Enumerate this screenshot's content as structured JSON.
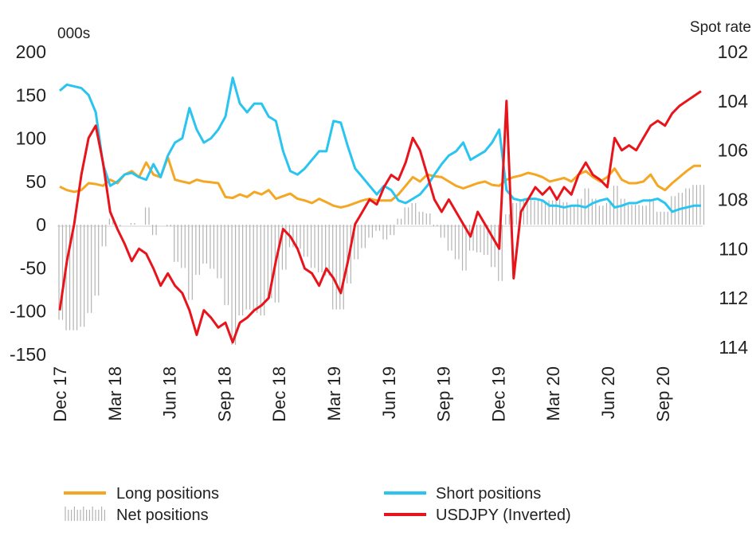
{
  "chart_data": {
    "type": "line",
    "left_unit": "000s",
    "right_unit": "Spot rate",
    "y_left": {
      "min": -150,
      "max": 200,
      "ticks": [
        200,
        150,
        100,
        50,
        0,
        -50,
        -100,
        -150
      ]
    },
    "y_right": {
      "min": 102,
      "max": 114,
      "inverted": true,
      "ticks": [
        102,
        104,
        106,
        108,
        110,
        112,
        114
      ]
    },
    "x_labels": [
      "Dec 17",
      "Mar 18",
      "Jun 18",
      "Sep 18",
      "Dec 18",
      "Mar 19",
      "Jun 19",
      "Sep 19",
      "Dec 19",
      "Mar 20",
      "Jun 20",
      "Sep 20"
    ],
    "grid": false,
    "legend_position": "bottom",
    "colors": {
      "long": "#f5a623",
      "short": "#29c4f0",
      "net": "#b3b3b3",
      "usdjpy": "#e8141b"
    },
    "legend": {
      "long": "Long positions",
      "short": "Short positions",
      "net": "Net positions",
      "usdjpy": "USDJPY (Inverted)"
    },
    "series": [
      {
        "name": "Long positions",
        "axis": "left",
        "values": [
          44,
          40,
          38,
          40,
          48,
          47,
          45,
          52,
          48,
          58,
          62,
          55,
          72,
          58,
          55,
          78,
          52,
          50,
          48,
          52,
          50,
          49,
          48,
          32,
          31,
          35,
          32,
          38,
          35,
          40,
          30,
          33,
          36,
          30,
          28,
          25,
          30,
          26,
          22,
          20,
          22,
          25,
          28,
          30,
          28,
          28,
          28,
          35,
          45,
          55,
          50,
          58,
          56,
          55,
          50,
          45,
          42,
          45,
          48,
          50,
          46,
          45,
          52,
          55,
          57,
          60,
          58,
          55,
          50,
          52,
          54,
          50,
          58,
          62,
          55,
          50,
          55,
          65,
          52,
          48,
          48,
          50,
          58,
          45,
          40,
          48,
          55,
          62,
          68,
          68
        ]
      },
      {
        "name": "Short positions",
        "axis": "left",
        "values": [
          155,
          162,
          160,
          158,
          150,
          130,
          70,
          45,
          50,
          58,
          60,
          55,
          52,
          70,
          55,
          80,
          95,
          100,
          135,
          110,
          95,
          100,
          110,
          125,
          170,
          140,
          130,
          140,
          140,
          125,
          120,
          85,
          62,
          58,
          65,
          75,
          85,
          85,
          120,
          118,
          90,
          65,
          55,
          45,
          35,
          45,
          40,
          28,
          25,
          30,
          35,
          45,
          58,
          70,
          80,
          85,
          95,
          75,
          80,
          85,
          95,
          110,
          40,
          30,
          28,
          30,
          30,
          28,
          22,
          22,
          20,
          22,
          22,
          20,
          25,
          28,
          30,
          20,
          22,
          25,
          25,
          28,
          28,
          30,
          25,
          15,
          18,
          20,
          22,
          22
        ]
      },
      {
        "name": "Net positions",
        "axis": "left",
        "values": [
          -110,
          -122,
          -122,
          -118,
          -102,
          -82,
          -25,
          7,
          -2,
          0,
          2,
          0,
          20,
          -12,
          0,
          -2,
          -43,
          -50,
          -87,
          -58,
          -45,
          -51,
          -62,
          -93,
          -139,
          -105,
          -98,
          -102,
          -105,
          -85,
          -90,
          -52,
          -26,
          -28,
          -37,
          -50,
          -55,
          -59,
          -98,
          -98,
          -68,
          -40,
          -27,
          -15,
          -7,
          -17,
          -12,
          7,
          20,
          25,
          15,
          13,
          -2,
          -15,
          -30,
          -40,
          -53,
          -30,
          -32,
          -35,
          -49,
          -65,
          12,
          25,
          29,
          30,
          28,
          27,
          28,
          30,
          26,
          23,
          30,
          42,
          30,
          22,
          25,
          45,
          30,
          23,
          23,
          22,
          30,
          15,
          15,
          33,
          37,
          42,
          46,
          46
        ]
      },
      {
        "name": "USDJPY (Inverted)",
        "axis": "right",
        "values": [
          112.5,
          110.5,
          109,
          107,
          105.5,
          105,
          106.5,
          108.5,
          109.2,
          109.8,
          110.5,
          110,
          110.2,
          110.8,
          111.5,
          111,
          111.5,
          111.8,
          112.5,
          113.5,
          112.5,
          112.8,
          113.2,
          113,
          113.8,
          113,
          112.8,
          112.5,
          112.3,
          112,
          110.5,
          109.2,
          109.5,
          110,
          110.8,
          111,
          111.5,
          110.8,
          111.2,
          111.8,
          110.5,
          109,
          108.5,
          108,
          108.2,
          107.5,
          107,
          107.2,
          106.5,
          105.5,
          106,
          107,
          108,
          108.5,
          108,
          108.5,
          109,
          109.5,
          108.5,
          109,
          109.5,
          110,
          104,
          111.2,
          108.5,
          108,
          107.5,
          107.8,
          107.5,
          108,
          107.5,
          107.8,
          107,
          106.5,
          107,
          107.2,
          107.5,
          105.5,
          106,
          105.8,
          106,
          105.5,
          105,
          104.8,
          105,
          104.5,
          104.2,
          104,
          103.8,
          103.6
        ]
      }
    ]
  }
}
